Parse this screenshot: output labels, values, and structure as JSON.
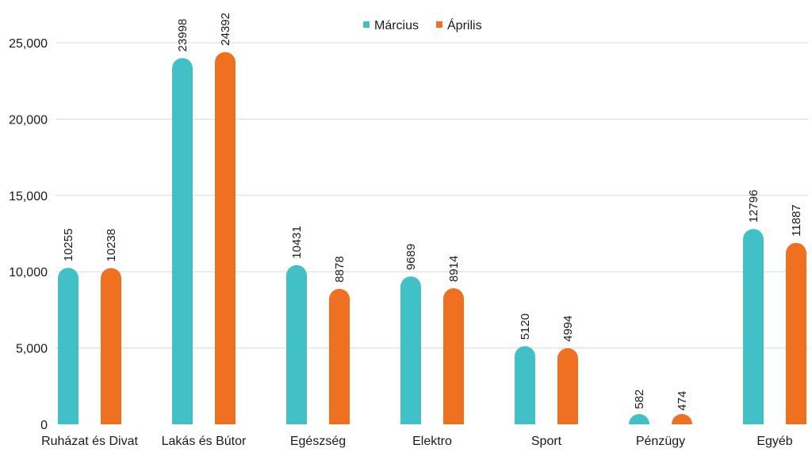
{
  "chart_data": {
    "type": "bar",
    "title": "",
    "xlabel": "",
    "ylabel": "",
    "categories": [
      "Ruházat és Divat",
      "Lakás és Bútor",
      "Egészség",
      "Elektro",
      "Sport",
      "Pénzügy",
      "Egyéb"
    ],
    "series": [
      {
        "name": "Március",
        "color": "#41c1c7",
        "values": [
          10255,
          23998,
          10431,
          9689,
          5120,
          582,
          12796
        ]
      },
      {
        "name": "Április",
        "color": "#f07021",
        "values": [
          10238,
          24392,
          8878,
          8914,
          4994,
          474,
          11887
        ]
      }
    ],
    "ylim": [
      0,
      25000
    ],
    "yticks": [
      0,
      5000,
      10000,
      15000,
      20000,
      25000
    ],
    "ytick_labels": [
      "0",
      "5,000",
      "10,000",
      "15,000",
      "20,000",
      "25,000"
    ],
    "grid": true,
    "legend_position": "top-center",
    "data_labels": true
  }
}
